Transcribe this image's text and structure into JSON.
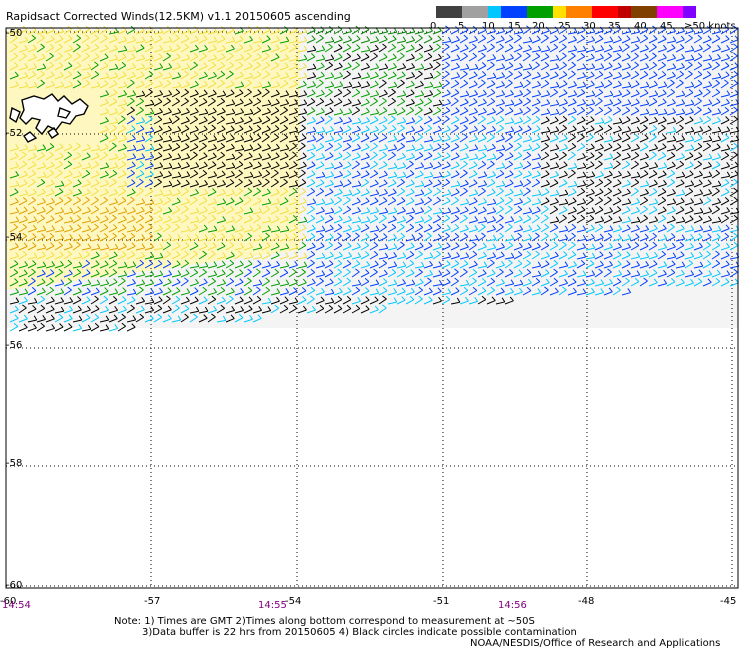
{
  "title": "Rapidsact Corrected Winds(12.5KM) v1.1 20150605 ascending",
  "legend": {
    "labels": [
      "0",
      "5",
      "10",
      "15",
      "20",
      "25",
      "30",
      "35",
      "40",
      "45",
      "≥50 knots"
    ],
    "colors": [
      "#404040",
      "#a0a0a0",
      "#00c8ff",
      "#0040ff",
      "#00a000",
      "#ffe000",
      "#ff8000",
      "#ff0000",
      "#c00000",
      "#804000",
      "#ff00ff",
      "#8000ff"
    ]
  },
  "axes": {
    "lon_labels": [
      "-60",
      "-57",
      "-54",
      "-51",
      "-48",
      "-45"
    ],
    "lat_labels": [
      "-50",
      "-52",
      "-54",
      "-56",
      "-58",
      "-60"
    ]
  },
  "time_labels": [
    "14:54",
    "14:55",
    "14:56"
  ],
  "notes": [
    "Note: 1) Times are GMT 2)Times along bottom correspond to measurement at ~50S",
    "3)Data buffer is 22 hrs from 20150605 4) Black circles indicate possible contamination"
  ],
  "credit": "NOAA/NESDIS/Office of Research and Applications"
}
